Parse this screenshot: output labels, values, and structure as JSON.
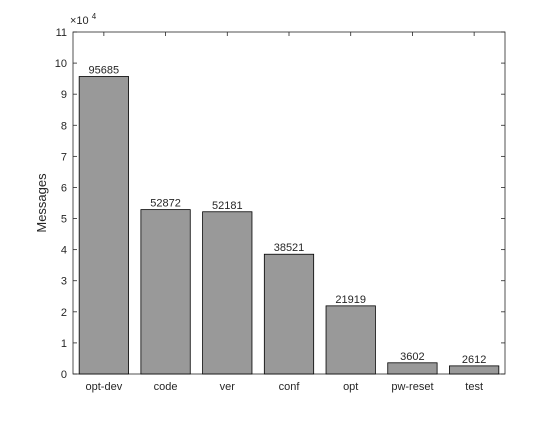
{
  "chart_data": {
    "type": "bar",
    "categories": [
      "opt-dev",
      "code",
      "ver",
      "conf",
      "opt",
      "pw-reset",
      "test"
    ],
    "values": [
      95685,
      52872,
      52181,
      38521,
      21919,
      3602,
      2612
    ],
    "data_labels": [
      "95685",
      "52872",
      "52181",
      "38521",
      "21919",
      "3602",
      "2612"
    ],
    "title": "",
    "xlabel": "",
    "ylabel": "Messages",
    "ylim": [
      0,
      110000
    ],
    "y_ticks": [
      0,
      1,
      2,
      3,
      4,
      5,
      6,
      7,
      8,
      9,
      10,
      11
    ],
    "y_scale_exponent": {
      "base": "×10",
      "exp": "4"
    },
    "grid": false,
    "colors": {
      "bar_fill": "#999999",
      "bar_edge": "#000000",
      "axis": "#262626"
    }
  }
}
